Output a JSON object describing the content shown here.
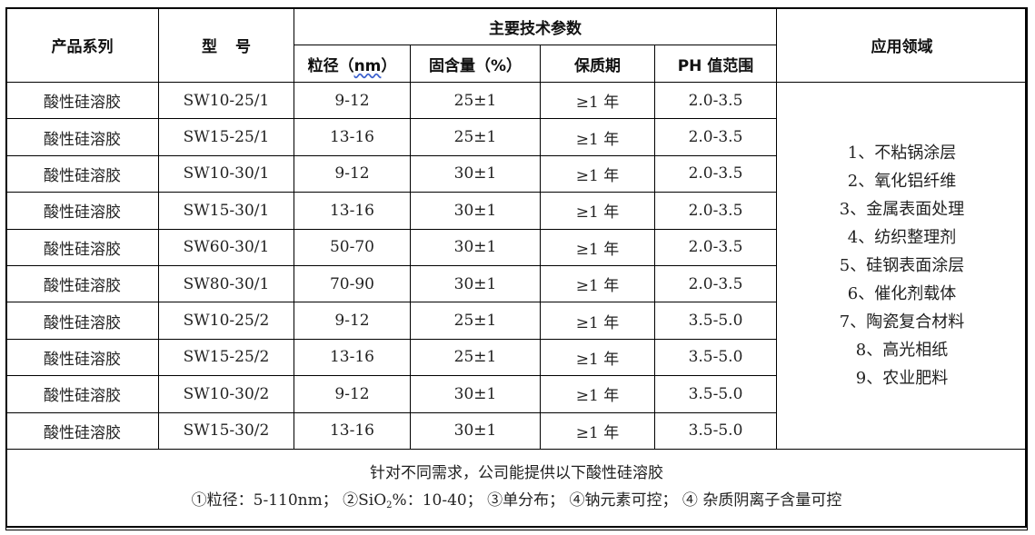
{
  "headers": {
    "series": "产品系列",
    "model": "型 号",
    "main_params": "主要技术参数",
    "application": "应用领域",
    "size_prefix": "粒径（",
    "size_unit": "nm",
    "size_suffix": "）",
    "solid": "固含量（%）",
    "shelf": "保质期",
    "ph": "PH 值范围"
  },
  "rows": [
    {
      "series": "酸性硅溶胶",
      "model": "SW10-25/1",
      "size": "9-12",
      "solid": "25±1",
      "shelf": "≥1 年",
      "ph": "2.0-3.5"
    },
    {
      "series": "酸性硅溶胶",
      "model": "SW15-25/1",
      "size": "13-16",
      "solid": "25±1",
      "shelf": "≥1 年",
      "ph": "2.0-3.5"
    },
    {
      "series": "酸性硅溶胶",
      "model": "SW10-30/1",
      "size": "9-12",
      "solid": "30±1",
      "shelf": "≥1 年",
      "ph": "2.0-3.5"
    },
    {
      "series": "酸性硅溶胶",
      "model": "SW15-30/1",
      "size": "13-16",
      "solid": "30±1",
      "shelf": "≥1 年",
      "ph": "2.0-3.5"
    },
    {
      "series": "酸性硅溶胶",
      "model": "SW60-30/1",
      "size": "50-70",
      "solid": "30±1",
      "shelf": "≥1 年",
      "ph": "2.0-3.5"
    },
    {
      "series": "酸性硅溶胶",
      "model": "SW80-30/1",
      "size": "70-90",
      "solid": "30±1",
      "shelf": "≥1 年",
      "ph": "2.0-3.5"
    },
    {
      "series": "酸性硅溶胶",
      "model": "SW10-25/2",
      "size": "9-12",
      "solid": "25±1",
      "shelf": "≥1 年",
      "ph": "3.5-5.0"
    },
    {
      "series": "酸性硅溶胶",
      "model": "SW15-25/2",
      "size": "13-16",
      "solid": "25±1",
      "shelf": "≥1 年",
      "ph": "3.5-5.0"
    },
    {
      "series": "酸性硅溶胶",
      "model": "SW10-30/2",
      "size": "9-12",
      "solid": "30±1",
      "shelf": "≥1 年",
      "ph": "3.5-5.0"
    },
    {
      "series": "酸性硅溶胶",
      "model": "SW15-30/2",
      "size": "13-16",
      "solid": "30±1",
      "shelf": "≥1 年",
      "ph": "3.5-5.0"
    }
  ],
  "applications": [
    "1、不粘锅涂层",
    "2、氧化铝纤维",
    "3、金属表面处理",
    "4、纺织整理剂",
    "5、硅钢表面涂层",
    "6、催化剂载体",
    "7、陶瓷复合材料",
    "8、高光相纸",
    "9、农业肥料"
  ],
  "note": {
    "line1": "针对不同需求，公司能提供以下酸性硅溶胶",
    "l2_a": "①粒径：5-110nm；  ②SiO",
    "l2_sub": "2",
    "l2_b": "%：10-40；  ③单分布；  ④钠元素可控；  ④ 杂质阴离子含量可控"
  }
}
